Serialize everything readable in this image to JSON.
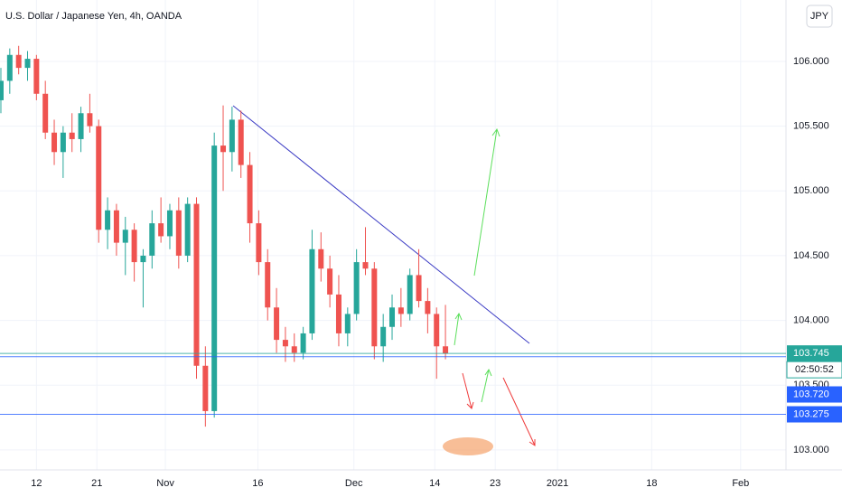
{
  "chart_data": {
    "type": "candlestick",
    "title": "U.S. Dollar / Japanese Yen, 4h, OANDA",
    "currency_button": "JPY",
    "countdown": "02:50:52",
    "up_color": "#26a69a",
    "down_color": "#ef5350",
    "grid": true,
    "x": [
      -4,
      -3,
      -2,
      -1,
      0,
      1,
      2,
      3,
      4,
      5,
      6,
      7,
      8,
      9,
      10,
      11,
      12,
      13,
      14,
      15,
      16,
      17,
      18,
      19,
      20,
      21,
      22,
      23,
      24,
      25,
      26,
      27,
      28,
      29,
      30,
      31,
      32,
      33,
      34,
      35,
      36,
      37,
      38,
      39,
      40,
      41,
      42,
      43,
      44,
      45,
      46
    ],
    "open": [
      105.7,
      105.85,
      106.05,
      105.95,
      106.02,
      105.75,
      105.45,
      105.3,
      105.45,
      105.4,
      105.6,
      105.5,
      104.7,
      104.85,
      104.6,
      104.7,
      104.45,
      104.5,
      104.75,
      104.65,
      104.85,
      104.5,
      104.9,
      103.65,
      103.3,
      105.35,
      105.3,
      105.55,
      105.2,
      104.75,
      104.45,
      104.1,
      103.85,
      103.8,
      103.75,
      103.9,
      104.55,
      104.4,
      104.2,
      103.9,
      104.05,
      104.45,
      104.4,
      103.8,
      103.95,
      104.1,
      104.05,
      104.35,
      104.15,
      104.05,
      103.8
    ],
    "high": [
      105.95,
      106.1,
      106.12,
      106.08,
      106.05,
      105.85,
      105.55,
      105.5,
      105.6,
      105.65,
      105.75,
      105.55,
      104.95,
      104.9,
      104.8,
      104.75,
      104.55,
      104.85,
      104.95,
      104.9,
      104.95,
      104.95,
      104.95,
      103.8,
      105.45,
      105.66,
      105.65,
      105.62,
      105.3,
      104.85,
      104.55,
      104.25,
      103.95,
      103.9,
      103.95,
      104.7,
      104.68,
      104.5,
      104.35,
      104.1,
      104.55,
      104.72,
      104.45,
      104.05,
      104.2,
      104.25,
      104.4,
      104.55,
      104.25,
      104.1,
      104.12
    ],
    "low": [
      105.6,
      105.75,
      105.9,
      105.85,
      105.7,
      105.4,
      105.2,
      105.1,
      105.3,
      105.3,
      105.45,
      104.6,
      104.55,
      104.5,
      104.35,
      104.3,
      104.1,
      104.4,
      104.6,
      104.55,
      104.4,
      104.45,
      103.55,
      103.18,
      103.25,
      105.0,
      105.15,
      105.1,
      104.6,
      104.35,
      104.0,
      103.75,
      103.68,
      103.68,
      103.7,
      103.85,
      104.3,
      104.1,
      103.8,
      103.8,
      104.0,
      104.35,
      103.7,
      103.68,
      103.85,
      103.95,
      104.0,
      104.1,
      103.9,
      103.55,
      103.7
    ],
    "close": [
      105.85,
      106.05,
      105.95,
      106.02,
      105.75,
      105.45,
      105.3,
      105.45,
      105.4,
      105.6,
      105.5,
      104.7,
      104.85,
      104.6,
      104.7,
      104.45,
      104.5,
      104.75,
      104.65,
      104.85,
      104.5,
      104.9,
      103.65,
      103.3,
      105.35,
      105.3,
      105.55,
      105.2,
      104.75,
      104.45,
      104.1,
      103.85,
      103.8,
      103.75,
      103.9,
      104.55,
      104.4,
      104.2,
      103.9,
      104.05,
      104.45,
      104.4,
      103.8,
      103.95,
      104.1,
      104.05,
      104.35,
      104.15,
      104.05,
      103.8,
      103.745
    ],
    "xlim": [
      -4.1,
      84.3
    ],
    "xticks": [
      {
        "value": 0,
        "label": "12"
      },
      {
        "value": 6.8,
        "label": "21"
      },
      {
        "value": 14.5,
        "label": "Nov"
      },
      {
        "value": 24.9,
        "label": "16"
      },
      {
        "value": 35.7,
        "label": "Dec"
      },
      {
        "value": 44.8,
        "label": "14"
      },
      {
        "value": 51.6,
        "label": "23"
      },
      {
        "value": 58.6,
        "label": "2021"
      },
      {
        "value": 69.2,
        "label": "18"
      },
      {
        "value": 79.2,
        "label": "Feb"
      }
    ],
    "ylim": [
      102.846,
      106.474
    ],
    "yticks": [
      {
        "value": 103,
        "label": "103.000"
      },
      {
        "value": 103.5,
        "label": "103.500"
      },
      {
        "value": 104,
        "label": "104.000"
      },
      {
        "value": 104.5,
        "label": "104.500"
      },
      {
        "value": 105,
        "label": "105.000"
      },
      {
        "value": 105.5,
        "label": "105.500"
      },
      {
        "value": 106,
        "label": "106.000"
      }
    ],
    "price_lines": [
      {
        "value": 103.745,
        "label": "103.745",
        "color": "#26a69a"
      },
      {
        "value": 103.72,
        "label": "103.720",
        "color": "#2962ff"
      },
      {
        "value": 103.275,
        "label": "103.275",
        "color": "#2962ff"
      }
    ]
  }
}
